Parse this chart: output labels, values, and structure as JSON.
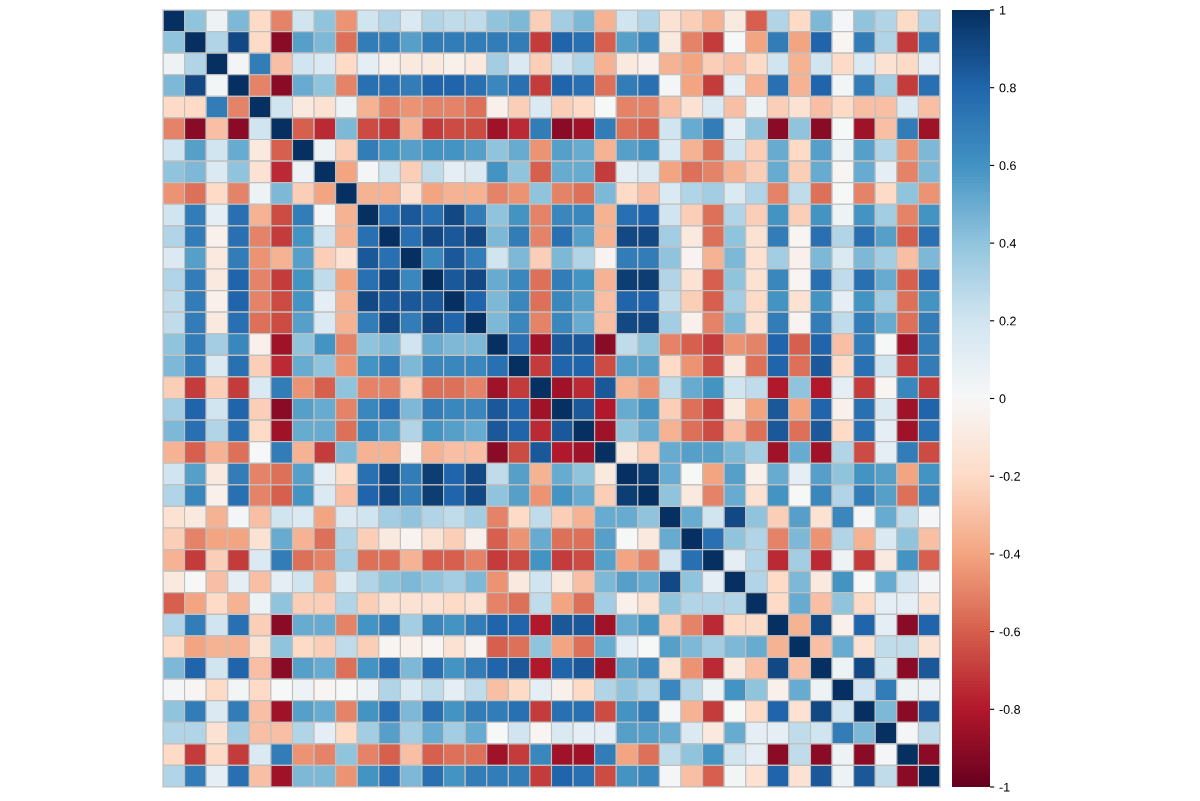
{
  "chart_data": {
    "type": "heatmap",
    "categories": [
      null,
      null,
      null,
      null,
      null,
      null,
      null,
      null,
      null,
      null,
      null,
      null,
      null,
      null,
      null,
      null,
      null,
      null,
      null,
      null,
      null,
      null,
      null,
      null,
      null,
      null,
      null,
      null,
      null,
      null,
      null,
      null,
      null,
      null,
      null,
      null
    ],
    "y_categories": [
      null,
      null,
      null,
      null,
      null,
      null,
      null,
      null,
      null,
      null,
      null,
      null,
      null,
      null,
      null,
      null,
      null,
      null,
      null,
      null,
      null,
      null,
      null,
      null,
      null,
      null,
      null,
      null,
      null,
      null,
      null,
      null,
      null,
      null,
      null,
      null
    ],
    "clim": [
      -1,
      1
    ],
    "cticks": [
      -1,
      -0.8,
      -0.6,
      -0.4,
      -0.2,
      0,
      0.2,
      0.4,
      0.6,
      0.8,
      1
    ],
    "cells": [
      [
        1,
        0.4,
        0.05,
        0.45,
        -0.2,
        -0.5,
        0.2,
        0.4,
        -0.45,
        0.2,
        0.3,
        0.15,
        0.3,
        0.25,
        0.25,
        0.4,
        0.45,
        -0.25,
        0.35,
        0.45,
        -0.35,
        0.2,
        0.3,
        -0.15,
        -0.25,
        -0.35,
        -0.1,
        -0.6,
        0.3,
        -0.2,
        0.45,
        0.02,
        0.4,
        0.3,
        -0.2,
        0.3
      ],
      [
        0.4,
        1,
        0.3,
        0.9,
        -0.2,
        -0.9,
        0.55,
        0.45,
        -0.55,
        0.7,
        0.7,
        0.55,
        0.7,
        0.7,
        0.7,
        0.7,
        0.7,
        -0.7,
        0.8,
        0.75,
        -0.6,
        0.55,
        0.65,
        -0.1,
        -0.5,
        -0.7,
        0,
        -0.4,
        0.7,
        -0.4,
        0.8,
        -0.02,
        0.7,
        0.3,
        -0.7,
        0.7
      ],
      [
        0.05,
        0.3,
        1,
        0.03,
        0.7,
        -0.3,
        0.2,
        0.15,
        -0.2,
        0.1,
        -0.05,
        -0.1,
        -0.1,
        -0.05,
        -0.1,
        0.35,
        0.15,
        -0.25,
        0.2,
        0.3,
        -0.35,
        -0.1,
        -0.05,
        -0.35,
        -0.4,
        -0.25,
        -0.3,
        -0.2,
        0.2,
        -0.35,
        0.2,
        -0.2,
        0.15,
        -0.15,
        -0.2,
        0.1
      ],
      [
        0.45,
        0.9,
        0.03,
        1,
        -0.5,
        -0.9,
        0.5,
        0.4,
        -0.5,
        0.75,
        0.75,
        0.7,
        0.8,
        0.8,
        0.75,
        0.65,
        0.75,
        -0.7,
        0.8,
        0.75,
        -0.55,
        0.7,
        0.75,
        0.02,
        -0.4,
        -0.7,
        0.1,
        -0.35,
        0.75,
        -0.35,
        0.8,
        0.03,
        0.7,
        0.35,
        -0.7,
        0.75
      ],
      [
        -0.2,
        -0.2,
        0.7,
        -0.5,
        1,
        0.2,
        -0.1,
        -0.15,
        0.05,
        -0.35,
        -0.5,
        -0.45,
        -0.5,
        -0.5,
        -0.55,
        -0.05,
        -0.25,
        0.15,
        -0.25,
        -0.2,
        0,
        -0.5,
        -0.5,
        -0.3,
        -0.15,
        0.15,
        -0.3,
        0.05,
        -0.25,
        -0.15,
        -0.3,
        -0.2,
        -0.3,
        -0.3,
        0.15,
        -0.3
      ],
      [
        -0.5,
        -0.9,
        -0.3,
        -0.9,
        0.2,
        1,
        -0.6,
        -0.75,
        0.45,
        -0.65,
        -0.7,
        -0.35,
        -0.7,
        -0.65,
        -0.65,
        -0.85,
        -0.75,
        0.7,
        -0.9,
        -0.85,
        0.7,
        -0.55,
        -0.6,
        0.2,
        0.5,
        0.7,
        0.1,
        0.4,
        -0.9,
        0.4,
        -0.9,
        0,
        -0.85,
        -0.3,
        0.7,
        -0.85
      ],
      [
        0.2,
        0.55,
        0.2,
        0.5,
        -0.1,
        -0.6,
        1,
        0.05,
        -0.25,
        0.7,
        0.6,
        0.55,
        0.6,
        0.6,
        0.55,
        0.4,
        0.5,
        -0.45,
        0.55,
        0.5,
        -0.35,
        0.55,
        0.6,
        0.15,
        -0.35,
        -0.55,
        0.2,
        -0.25,
        0.5,
        -0.2,
        0.55,
        0.05,
        0.55,
        0.3,
        -0.45,
        0.45
      ],
      [
        0.4,
        0.45,
        0.15,
        0.4,
        -0.15,
        -0.75,
        0.05,
        1,
        -0.4,
        0.02,
        0.2,
        -0.25,
        0.25,
        0.1,
        0.15,
        0.6,
        0.4,
        -0.6,
        0.5,
        0.5,
        -0.7,
        0.1,
        0.15,
        -0.4,
        -0.55,
        -0.5,
        -0.35,
        -0.25,
        0.5,
        -0.25,
        0.5,
        -0.02,
        0.5,
        0.1,
        -0.5,
        0.45
      ],
      [
        -0.45,
        -0.55,
        -0.2,
        -0.5,
        0.05,
        0.45,
        -0.25,
        -0.4,
        1,
        -0.35,
        -0.35,
        -0.15,
        -0.4,
        -0.35,
        -0.35,
        -0.5,
        -0.45,
        0.4,
        -0.5,
        -0.55,
        0.45,
        -0.2,
        -0.3,
        0.15,
        0.3,
        0.35,
        0.15,
        0.3,
        -0.5,
        0.25,
        -0.55,
        0,
        -0.5,
        -0.2,
        0.4,
        -0.45
      ],
      [
        0.2,
        0.7,
        0.1,
        0.75,
        -0.35,
        -0.65,
        0.7,
        0.02,
        -0.35,
        1,
        0.75,
        0.85,
        0.75,
        0.9,
        0.7,
        0.4,
        0.6,
        -0.5,
        0.65,
        0.65,
        -0.35,
        0.75,
        0.8,
        0.2,
        -0.25,
        -0.55,
        0.3,
        -0.25,
        0.6,
        -0.25,
        0.6,
        0.05,
        0.6,
        0.35,
        -0.5,
        0.6
      ],
      [
        0.3,
        0.7,
        -0.05,
        0.75,
        -0.5,
        -0.7,
        0.6,
        0.2,
        -0.35,
        0.75,
        1,
        0.75,
        0.9,
        0.85,
        0.9,
        0.45,
        0.7,
        -0.5,
        0.75,
        0.55,
        -0.35,
        0.9,
        0.9,
        0.35,
        -0.1,
        -0.55,
        0.4,
        -0.15,
        0.7,
        -0.02,
        0.75,
        0.3,
        0.75,
        0.55,
        -0.6,
        0.75
      ],
      [
        0.15,
        0.55,
        -0.1,
        0.7,
        -0.45,
        -0.35,
        0.55,
        -0.25,
        -0.15,
        0.85,
        0.75,
        1,
        0.65,
        0.85,
        0.7,
        0.2,
        0.45,
        -0.25,
        0.45,
        0.3,
        -0.03,
        0.7,
        0.7,
        0.4,
        -0.03,
        -0.35,
        0.45,
        -0.15,
        0.35,
        -0.05,
        0.45,
        0.15,
        0.45,
        0.35,
        -0.3,
        0.45
      ],
      [
        0.3,
        0.7,
        -0.1,
        0.8,
        -0.5,
        -0.7,
        0.6,
        0.25,
        -0.4,
        0.75,
        0.9,
        0.65,
        1,
        0.85,
        0.9,
        0.5,
        0.65,
        -0.55,
        0.7,
        0.6,
        -0.35,
        0.95,
        0.95,
        0.3,
        -0.15,
        -0.6,
        0.4,
        -0.15,
        0.65,
        -0.02,
        0.75,
        0.25,
        0.75,
        0.5,
        -0.6,
        0.75
      ],
      [
        0.25,
        0.7,
        -0.05,
        0.8,
        -0.5,
        -0.65,
        0.6,
        0.1,
        -0.35,
        0.9,
        0.85,
        0.85,
        0.85,
        1,
        0.8,
        0.45,
        0.65,
        -0.55,
        0.65,
        0.55,
        -0.3,
        0.8,
        0.8,
        0.25,
        -0.25,
        -0.6,
        0.35,
        -0.2,
        0.6,
        -0.15,
        0.6,
        0.1,
        0.6,
        0.35,
        -0.55,
        0.6
      ],
      [
        0.25,
        0.7,
        -0.1,
        0.75,
        -0.55,
        -0.65,
        0.55,
        0.15,
        -0.35,
        0.7,
        0.9,
        0.7,
        0.9,
        0.8,
        1,
        0.45,
        0.65,
        -0.5,
        0.65,
        0.5,
        -0.3,
        0.9,
        0.9,
        0.35,
        -0.05,
        -0.5,
        0.45,
        -0.15,
        0.7,
        -0.03,
        0.7,
        0.25,
        0.7,
        0.5,
        -0.55,
        0.7
      ],
      [
        0.4,
        0.7,
        0.35,
        0.65,
        -0.05,
        -0.85,
        0.4,
        0.6,
        -0.5,
        0.4,
        0.45,
        0.2,
        0.5,
        0.45,
        0.45,
        1,
        0.75,
        -0.85,
        0.85,
        0.85,
        -0.9,
        0.25,
        0.4,
        -0.5,
        -0.6,
        -0.7,
        -0.45,
        -0.5,
        0.8,
        -0.6,
        0.8,
        -0.3,
        0.7,
        0,
        -0.85,
        0.7
      ],
      [
        0.45,
        0.7,
        0.15,
        0.75,
        -0.25,
        -0.75,
        0.5,
        0.4,
        -0.45,
        0.6,
        0.7,
        0.45,
        0.65,
        0.65,
        0.65,
        0.75,
        1,
        -0.7,
        0.8,
        0.8,
        -0.65,
        0.55,
        0.55,
        -0.2,
        -0.45,
        -0.65,
        -0.1,
        -0.55,
        0.8,
        -0.55,
        0.85,
        -0.2,
        0.75,
        0.2,
        -0.7,
        0.7
      ],
      [
        -0.25,
        -0.7,
        -0.25,
        -0.7,
        0.15,
        0.7,
        -0.45,
        -0.6,
        0.4,
        -0.5,
        -0.5,
        -0.25,
        -0.55,
        -0.55,
        -0.5,
        -0.85,
        -0.7,
        1,
        -0.85,
        -0.75,
        0.85,
        -0.35,
        -0.45,
        0.25,
        0.5,
        0.6,
        0.2,
        0.25,
        -0.8,
        0.4,
        -0.8,
        0.1,
        -0.7,
        -0.02,
        0.65,
        -0.7
      ],
      [
        0.35,
        0.8,
        0.2,
        0.8,
        -0.25,
        -0.9,
        0.55,
        0.5,
        -0.5,
        0.65,
        0.75,
        0.45,
        0.7,
        0.65,
        0.65,
        0.85,
        0.8,
        -0.85,
        1,
        0.85,
        -0.8,
        0.5,
        0.6,
        -0.25,
        -0.55,
        -0.7,
        -0.1,
        -0.4,
        0.85,
        -0.4,
        0.8,
        -0.05,
        0.75,
        0.15,
        -0.85,
        0.8
      ],
      [
        0.45,
        0.75,
        0.3,
        0.75,
        -0.2,
        -0.85,
        0.5,
        0.5,
        -0.55,
        0.65,
        0.55,
        0.3,
        0.6,
        0.55,
        0.5,
        0.85,
        0.8,
        -0.75,
        0.85,
        1,
        -0.85,
        0.4,
        0.5,
        -0.35,
        -0.55,
        -0.65,
        -0.3,
        -0.55,
        0.85,
        -0.55,
        0.85,
        -0.2,
        0.75,
        0.1,
        -0.85,
        0.75
      ],
      [
        -0.35,
        -0.6,
        -0.35,
        -0.55,
        0,
        0.7,
        -0.35,
        -0.7,
        0.45,
        -0.35,
        -0.35,
        -0.03,
        -0.35,
        -0.3,
        -0.3,
        -0.9,
        -0.65,
        0.85,
        -0.8,
        -0.85,
        1,
        -0.1,
        -0.25,
        0.5,
        0.55,
        0.55,
        0.45,
        0.35,
        -0.85,
        0.5,
        -0.85,
        0.3,
        -0.65,
        0.1,
        0.7,
        -0.65
      ],
      [
        0.2,
        0.55,
        -0.1,
        0.7,
        -0.5,
        -0.55,
        0.55,
        0.1,
        -0.2,
        0.75,
        0.9,
        0.7,
        0.95,
        0.8,
        0.9,
        0.25,
        0.55,
        -0.35,
        0.5,
        0.4,
        -0.1,
        1,
        0.95,
        0.5,
        0,
        -0.4,
        0.55,
        -0.05,
        0.5,
        0.1,
        0.55,
        0.4,
        0.6,
        0.55,
        -0.4,
        0.6
      ],
      [
        0.3,
        0.65,
        -0.05,
        0.75,
        -0.5,
        -0.6,
        0.6,
        0.15,
        -0.3,
        0.8,
        0.9,
        0.7,
        0.95,
        0.8,
        0.9,
        0.4,
        0.55,
        -0.45,
        0.6,
        0.5,
        -0.25,
        0.95,
        1,
        0.4,
        -0.1,
        -0.5,
        0.5,
        -0.15,
        0.6,
        0,
        0.65,
        0.3,
        0.7,
        0.55,
        -0.55,
        0.65
      ],
      [
        -0.15,
        -0.1,
        -0.35,
        0.02,
        -0.3,
        0.2,
        0.15,
        -0.4,
        0.15,
        0.2,
        0.35,
        0.4,
        0.3,
        0.25,
        0.35,
        -0.5,
        -0.2,
        0.25,
        -0.25,
        -0.35,
        0.5,
        0.5,
        0.4,
        1,
        0.5,
        0.2,
        0.9,
        0.4,
        -0.25,
        0.55,
        -0.15,
        0.65,
        0.02,
        0.5,
        0.25,
        0.02
      ],
      [
        -0.25,
        -0.5,
        -0.4,
        -0.4,
        -0.15,
        0.5,
        -0.35,
        -0.55,
        0.3,
        -0.25,
        -0.1,
        -0.03,
        -0.15,
        -0.25,
        -0.05,
        -0.6,
        -0.45,
        0.5,
        -0.55,
        -0.55,
        0.55,
        0,
        -0.1,
        0.5,
        1,
        0.75,
        0.4,
        0.3,
        -0.5,
        0.45,
        -0.45,
        0.3,
        -0.35,
        0.15,
        0.4,
        -0.3
      ],
      [
        -0.35,
        -0.7,
        -0.25,
        -0.7,
        0.15,
        0.7,
        -0.55,
        -0.5,
        0.35,
        -0.55,
        -0.55,
        -0.35,
        -0.6,
        -0.6,
        -0.5,
        -0.7,
        -0.65,
        0.6,
        -0.7,
        -0.65,
        0.55,
        -0.4,
        -0.5,
        0.2,
        0.75,
        1,
        0.1,
        0.3,
        -0.75,
        0.35,
        -0.75,
        0.05,
        -0.7,
        -0.1,
        0.6,
        -0.6
      ],
      [
        -0.1,
        0,
        -0.3,
        0.1,
        -0.3,
        0.1,
        0.2,
        -0.35,
        0.15,
        0.3,
        0.4,
        0.45,
        0.4,
        0.35,
        0.45,
        -0.45,
        -0.1,
        0.2,
        -0.1,
        -0.3,
        0.45,
        0.55,
        0.5,
        0.9,
        0.4,
        0.1,
        1,
        0.3,
        -0.2,
        0.45,
        -0.1,
        0.6,
        0,
        0.5,
        0.2,
        0.03
      ],
      [
        -0.6,
        -0.4,
        -0.2,
        -0.35,
        0.05,
        0.4,
        -0.25,
        -0.25,
        0.3,
        -0.25,
        -0.15,
        -0.15,
        -0.15,
        -0.2,
        -0.15,
        -0.5,
        -0.55,
        0.25,
        -0.4,
        -0.55,
        0.35,
        -0.05,
        -0.15,
        0.4,
        0.3,
        0.3,
        0.3,
        1,
        -0.2,
        0.5,
        -0.3,
        0.4,
        -0.2,
        0.1,
        0.1,
        -0.15
      ],
      [
        0.3,
        0.7,
        0.2,
        0.75,
        -0.25,
        -0.9,
        0.5,
        0.5,
        -0.5,
        0.6,
        0.7,
        0.35,
        0.65,
        0.6,
        0.7,
        0.8,
        0.8,
        -0.8,
        0.85,
        0.85,
        -0.85,
        0.5,
        0.6,
        -0.25,
        -0.5,
        -0.75,
        -0.2,
        -0.2,
        1,
        -0.35,
        0.9,
        -0.05,
        0.8,
        0.1,
        -0.9,
        0.8
      ],
      [
        -0.2,
        -0.4,
        -0.35,
        -0.35,
        -0.15,
        0.4,
        -0.2,
        -0.25,
        0.25,
        -0.25,
        -0.02,
        -0.05,
        -0.02,
        -0.15,
        -0.03,
        -0.6,
        -0.55,
        0.4,
        -0.4,
        -0.55,
        0.5,
        0.1,
        0,
        0.55,
        0.45,
        0.35,
        0.45,
        0.5,
        -0.35,
        1,
        -0.3,
        0.5,
        -0.15,
        0.25,
        0.25,
        -0.15
      ],
      [
        0.45,
        0.8,
        0.2,
        0.8,
        -0.3,
        -0.9,
        0.55,
        0.5,
        -0.55,
        0.6,
        0.75,
        0.45,
        0.75,
        0.6,
        0.7,
        0.8,
        0.85,
        -0.8,
        0.8,
        0.85,
        -0.85,
        0.55,
        0.65,
        -0.15,
        -0.45,
        -0.75,
        -0.1,
        -0.3,
        0.9,
        -0.3,
        1,
        0.05,
        0.9,
        0.2,
        -0.9,
        0.85
      ],
      [
        0.02,
        -0.02,
        -0.2,
        0.03,
        -0.2,
        0,
        0.05,
        -0.02,
        0,
        0.05,
        0.3,
        0.15,
        0.25,
        0.1,
        0.25,
        -0.3,
        -0.2,
        0.1,
        -0.05,
        -0.2,
        0.3,
        0.4,
        0.3,
        0.65,
        0.3,
        0.05,
        0.6,
        0.4,
        -0.05,
        0.5,
        0.05,
        1,
        0.2,
        0.7,
        0.05,
        0.05
      ],
      [
        0.4,
        0.7,
        0.15,
        0.7,
        -0.3,
        -0.85,
        0.55,
        0.5,
        -0.5,
        0.6,
        0.75,
        0.45,
        0.75,
        0.6,
        0.7,
        0.7,
        0.75,
        -0.7,
        0.75,
        0.75,
        -0.65,
        0.6,
        0.7,
        0.02,
        -0.35,
        -0.7,
        0,
        -0.2,
        0.8,
        -0.15,
        0.9,
        0.2,
        1,
        0.45,
        -0.9,
        0.85
      ],
      [
        0.3,
        0.3,
        -0.15,
        0.35,
        -0.3,
        -0.3,
        0.3,
        0.1,
        -0.2,
        0.35,
        0.55,
        0.35,
        0.5,
        0.35,
        0.5,
        0,
        0.2,
        -0.02,
        0.15,
        0.1,
        0.1,
        0.55,
        0.55,
        0.5,
        0.15,
        -0.1,
        0.5,
        0.1,
        0.1,
        0.25,
        0.2,
        0.7,
        0.45,
        1,
        0.02,
        0.25
      ],
      [
        -0.2,
        -0.7,
        -0.2,
        -0.7,
        0.15,
        0.7,
        -0.45,
        -0.5,
        0.4,
        -0.5,
        -0.6,
        -0.3,
        -0.6,
        -0.55,
        -0.55,
        -0.85,
        -0.7,
        0.65,
        -0.85,
        -0.85,
        0.7,
        -0.4,
        -0.55,
        0.25,
        0.4,
        0.6,
        0.2,
        0.1,
        -0.9,
        0.25,
        -0.9,
        0.05,
        -0.9,
        0.02,
        1,
        -0.9
      ],
      [
        0.3,
        0.7,
        0.1,
        0.75,
        -0.3,
        -0.85,
        0.45,
        0.45,
        -0.45,
        0.6,
        0.75,
        0.45,
        0.75,
        0.6,
        0.7,
        0.7,
        0.7,
        -0.7,
        0.8,
        0.75,
        -0.65,
        0.6,
        0.65,
        0.02,
        -0.3,
        -0.6,
        0.03,
        -0.15,
        0.8,
        -0.15,
        0.85,
        0.05,
        0.85,
        0.25,
        -0.9,
        1
      ]
    ]
  }
}
